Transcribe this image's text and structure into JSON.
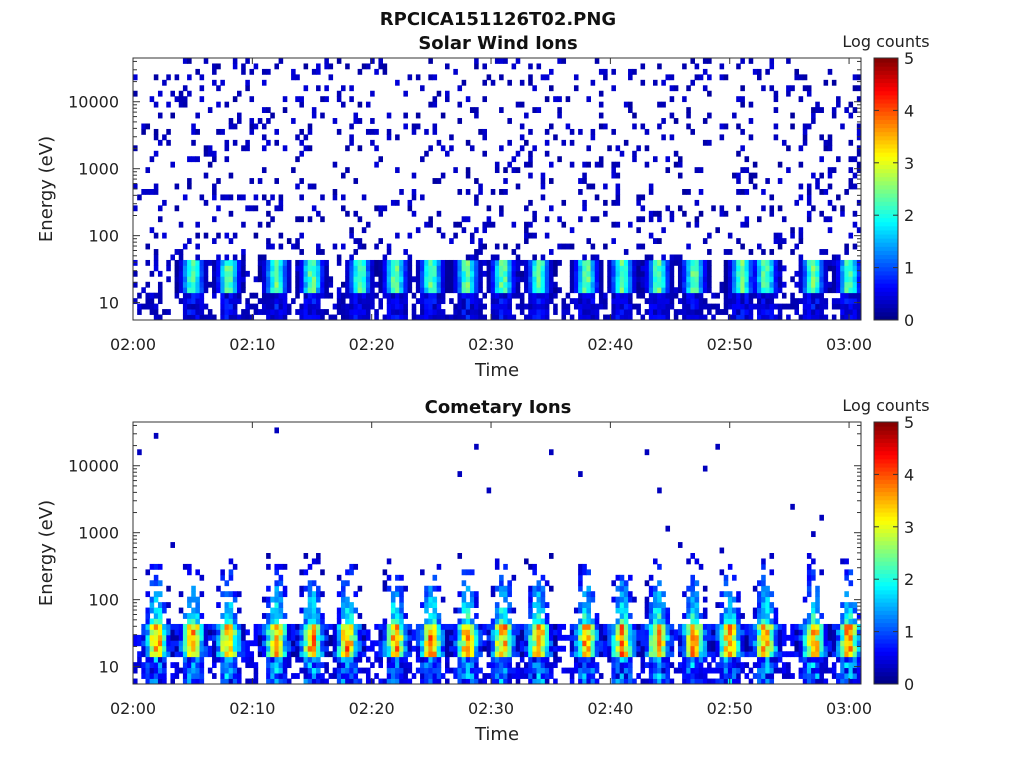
{
  "figure_title": "RPCICA151126T02.PNG",
  "chart_data": [
    {
      "type": "heatmap",
      "title": "Solar Wind Ions",
      "xlabel": "Time",
      "ylabel": "Energy (eV)",
      "y_scale": "log",
      "ylim": [
        5.5,
        45000
      ],
      "xlim": [
        "02:00",
        "03:01"
      ],
      "x_ticks": [
        "02:00",
        "02:10",
        "02:20",
        "02:30",
        "02:40",
        "02:50",
        "03:00"
      ],
      "y_ticks": [
        "10",
        "100",
        "1000",
        "10000"
      ],
      "colorbar": {
        "label": "Log counts",
        "ticks": [
          "0",
          "1",
          "2",
          "3",
          "4",
          "5"
        ],
        "range": [
          0,
          5
        ],
        "colormap": "jet"
      },
      "peak_log_counts": 3,
      "pulse_times": [
        "02:05",
        "02:08",
        "02:12",
        "02:15",
        "02:19",
        "02:22",
        "02:25",
        "02:28",
        "02:31",
        "02:34",
        "02:38",
        "02:41",
        "02:44",
        "02:47",
        "02:51",
        "02:53",
        "02:57",
        "03:00"
      ]
    },
    {
      "type": "heatmap",
      "title": "Cometary Ions",
      "xlabel": "Time",
      "ylabel": "Energy (eV)",
      "y_scale": "log",
      "ylim": [
        5.5,
        45000
      ],
      "xlim": [
        "02:00",
        "03:01"
      ],
      "x_ticks": [
        "02:00",
        "02:10",
        "02:20",
        "02:30",
        "02:40",
        "02:50",
        "03:00"
      ],
      "y_ticks": [
        "10",
        "100",
        "1000",
        "10000"
      ],
      "colorbar": {
        "label": "Log counts",
        "ticks": [
          "0",
          "1",
          "2",
          "3",
          "4",
          "5"
        ],
        "range": [
          0,
          5
        ],
        "colormap": "jet"
      },
      "peak_log_counts": 4,
      "pulse_times": [
        "02:02",
        "02:05",
        "02:08",
        "02:12",
        "02:15",
        "02:18",
        "02:22",
        "02:25",
        "02:28",
        "02:31",
        "02:34",
        "02:38",
        "02:41",
        "02:44",
        "02:47",
        "02:50",
        "02:53",
        "02:57",
        "03:00"
      ]
    }
  ]
}
